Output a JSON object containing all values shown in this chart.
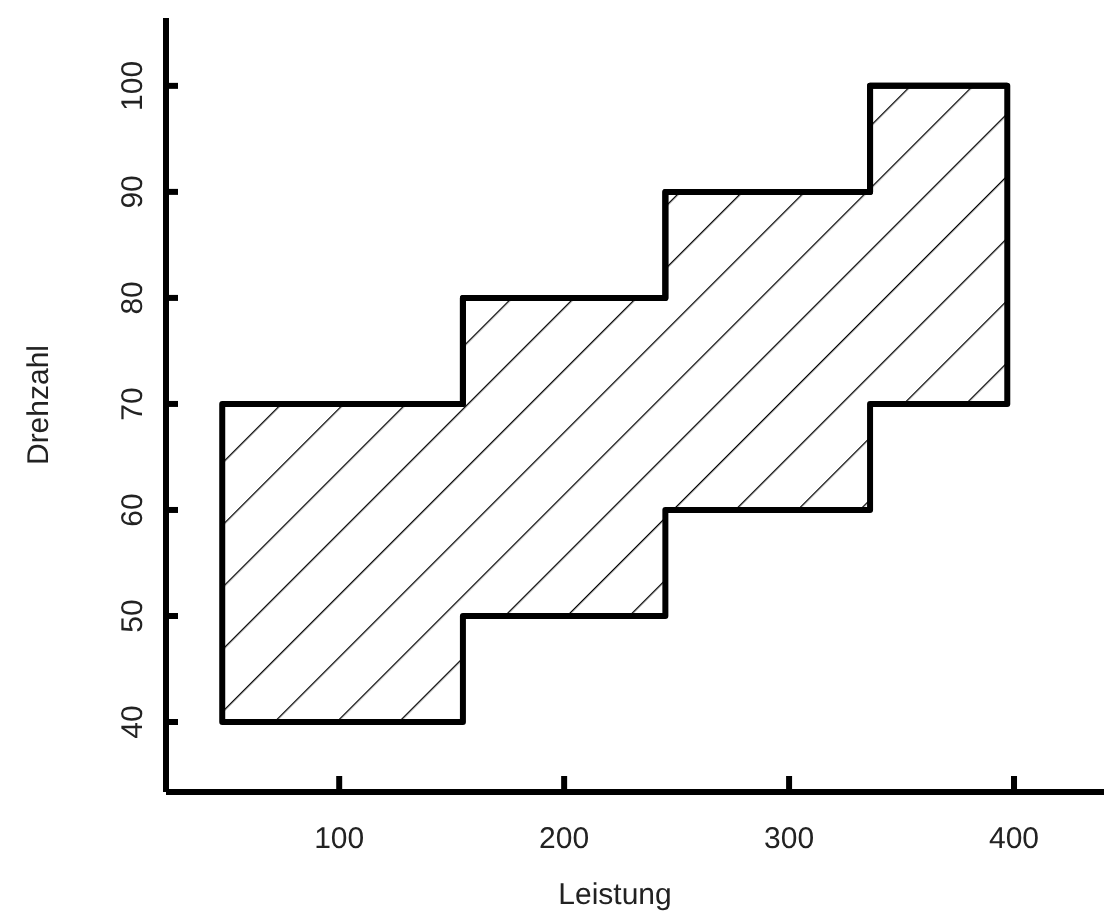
{
  "chart_data": {
    "type": "step",
    "xlabel": "Leistung",
    "ylabel": "Drehzahl",
    "x": [
      48,
      155,
      245,
      336,
      397
    ],
    "series": [
      {
        "color": "#000000",
        "values": [
          70,
          80,
          90,
          100,
          100
        ],
        "lower": [
          40,
          50,
          60,
          70,
          70
        ],
        "upper": [
          70,
          80,
          90,
          100,
          100
        ]
      }
    ],
    "xlim": [
      23,
      440
    ],
    "xticks": [
      100,
      200,
      300,
      400
    ],
    "ylim": [
      33.4,
      106.4
    ],
    "yticks": [
      40,
      50,
      60,
      70,
      80,
      90,
      100
    ],
    "grid": false
  }
}
